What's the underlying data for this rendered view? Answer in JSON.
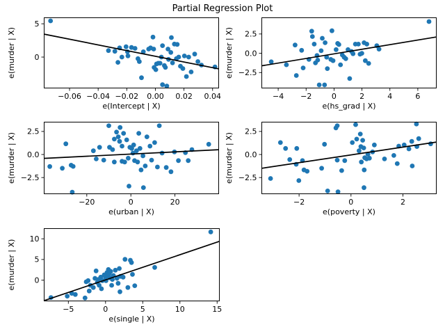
{
  "figure": {
    "title": "Partial Regression Plot",
    "background_color": "#ffffff",
    "marker_color": "#1f77b4",
    "line_color": "#000000",
    "spine_color": "#000000"
  },
  "chart_data": [
    {
      "id": "intercept",
      "type": "scatter",
      "title": "",
      "xlabel": "e(Intercept | X)",
      "ylabel": "e(murder | X)",
      "xlim": [
        -0.078,
        0.0445
      ],
      "ylim": [
        -4.7,
        5.96
      ],
      "grid": false,
      "legend": null,
      "xticks": [
        -0.06,
        -0.04,
        -0.02,
        0.0,
        0.02,
        0.04
      ],
      "xtick_labels": [
        "−0.06",
        "−0.04",
        "−0.02",
        "0.00",
        "0.02",
        "0.04"
      ],
      "yticks": [
        0,
        5
      ],
      "ytick_labels": [
        "0",
        "5"
      ],
      "regression_line": [
        [
          -0.078,
          3.45
        ],
        [
          0.0445,
          -1.78
        ]
      ],
      "points": [
        [
          -0.0733,
          5.44
        ],
        [
          -0.0328,
          0.97
        ],
        [
          -0.0283,
          0.87
        ],
        [
          -0.025,
          1.38
        ],
        [
          -0.0262,
          -0.79
        ],
        [
          -0.0234,
          0.0
        ],
        [
          -0.0205,
          1.55
        ],
        [
          -0.0195,
          0.8
        ],
        [
          -0.0192,
          0.18
        ],
        [
          -0.0167,
          1.45
        ],
        [
          -0.0142,
          1.31
        ],
        [
          -0.0122,
          -0.24
        ],
        [
          -0.0112,
          -0.68
        ],
        [
          -0.0097,
          -3.1
        ],
        [
          -0.0084,
          0.8
        ],
        [
          -0.0047,
          1.21
        ],
        [
          -0.0034,
          1.38
        ],
        [
          -0.0017,
          3.0
        ],
        [
          -0.0012,
          1.21
        ],
        [
          -0.0009,
          -1.55
        ],
        [
          0.0003,
          -1.89
        ],
        [
          0.0008,
          -1.03
        ],
        [
          0.002,
          -0.93
        ],
        [
          0.0033,
          -0.93
        ],
        [
          0.0042,
          0.0
        ],
        [
          0.005,
          1.72
        ],
        [
          0.0063,
          -1.27
        ],
        [
          0.007,
          -1.55
        ],
        [
          0.005,
          -4.15
        ],
        [
          0.008,
          -4.35
        ],
        [
          0.0088,
          1.21
        ],
        [
          0.0092,
          -0.34
        ],
        [
          0.0108,
          0.69
        ],
        [
          0.0112,
          2.93
        ],
        [
          0.012,
          -0.86
        ],
        [
          0.0133,
          1.96
        ],
        [
          0.0147,
          -0.24
        ],
        [
          0.0153,
          1.9
        ],
        [
          0.0163,
          0.0
        ],
        [
          0.0175,
          -1.37
        ],
        [
          0.0192,
          -1.72
        ],
        [
          0.0203,
          0.17
        ],
        [
          0.0217,
          -2.92
        ],
        [
          0.0233,
          0.0
        ],
        [
          0.025,
          -2.23
        ],
        [
          0.0275,
          0.45
        ],
        [
          0.0297,
          -0.68
        ],
        [
          0.0322,
          -1.2
        ],
        [
          0.0417,
          -1.48
        ]
      ]
    },
    {
      "id": "hs_grad",
      "type": "scatter",
      "title": "",
      "xlabel": "e(hs_grad | X)",
      "ylabel": "e(murder | X)",
      "xlim": [
        -5.2,
        7.35
      ],
      "ylim": [
        -4.55,
        4.65
      ],
      "grid": false,
      "legend": null,
      "xticks": [
        -4,
        -2,
        0,
        2,
        4,
        6
      ],
      "xtick_labels": [
        "−4",
        "−2",
        "0",
        "2",
        "4",
        "6"
      ],
      "yticks": [
        -2.5,
        0.0,
        2.5
      ],
      "ytick_labels": [
        "−2.5",
        "0.0",
        "2.5"
      ],
      "regression_line": [
        [
          -5.2,
          -1.63
        ],
        [
          7.35,
          2.12
        ]
      ],
      "points": [
        [
          6.8,
          4.11
        ],
        [
          -4.5,
          -1.1
        ],
        [
          -3.41,
          -1.49
        ],
        [
          -2.79,
          1.07
        ],
        [
          -2.7,
          -2.88
        ],
        [
          -2.32,
          0.38
        ],
        [
          -2.21,
          -1.9
        ],
        [
          -1.8,
          -0.8
        ],
        [
          -1.6,
          2.86
        ],
        [
          -1.55,
          2.17
        ],
        [
          -1.42,
          1.19
        ],
        [
          -1.33,
          -1.25
        ],
        [
          -1.22,
          -0.29
        ],
        [
          -1.17,
          -0.89
        ],
        [
          -1.06,
          -4.1
        ],
        [
          -0.92,
          0.33
        ],
        [
          -0.84,
          1.94
        ],
        [
          -0.68,
          -4.1
        ],
        [
          -0.64,
          1.37
        ],
        [
          -0.53,
          -0.51
        ],
        [
          -0.48,
          -1.99
        ],
        [
          -0.23,
          -0.8
        ],
        [
          -0.15,
          2.92
        ],
        [
          -0.07,
          -0.96
        ],
        [
          0.15,
          0.47
        ],
        [
          0.26,
          1.28
        ],
        [
          0.35,
          1.13
        ],
        [
          0.46,
          -1.49
        ],
        [
          0.59,
          -0.21
        ],
        [
          0.72,
          -0.51
        ],
        [
          0.84,
          -0.71
        ],
        [
          1.0,
          0.47
        ],
        [
          1.12,
          -3.28
        ],
        [
          1.25,
          0.24
        ],
        [
          1.36,
          -0.06
        ],
        [
          1.53,
          1.19
        ],
        [
          1.74,
          1.19
        ],
        [
          1.86,
          -0.12
        ],
        [
          1.99,
          0.0
        ],
        [
          2.15,
          1.37
        ],
        [
          2.24,
          -0.96
        ],
        [
          2.35,
          1.19
        ],
        [
          2.48,
          -1.31
        ],
        [
          3.06,
          0.98
        ],
        [
          3.22,
          0.54
        ]
      ]
    },
    {
      "id": "urban",
      "type": "scatter",
      "title": "",
      "xlabel": "e(urban | X)",
      "ylabel": "e(murder | X)",
      "xlim": [
        -39.5,
        40.0
      ],
      "ylim": [
        -4.3,
        3.55
      ],
      "grid": false,
      "legend": null,
      "xticks": [
        -20,
        0,
        20
      ],
      "xtick_labels": [
        "−20",
        "0",
        "20"
      ],
      "yticks": [
        -2.5,
        0.0,
        2.5
      ],
      "ytick_labels": [
        "−2.5",
        "0.0",
        "2.5"
      ],
      "regression_line": [
        [
          -39.5,
          -0.42
        ],
        [
          40.0,
          0.52
        ]
      ],
      "points": [
        [
          -36.8,
          -1.3
        ],
        [
          -31.1,
          -1.49
        ],
        [
          -29.5,
          1.16
        ],
        [
          -27.1,
          -1.16
        ],
        [
          -26.6,
          -4.09
        ],
        [
          -26.2,
          -1.29
        ],
        [
          -17.0,
          0.4
        ],
        [
          -15.7,
          -0.48
        ],
        [
          -14.2,
          0.78
        ],
        [
          -12.3,
          -0.61
        ],
        [
          -10.0,
          3.13
        ],
        [
          -9.7,
          0.78
        ],
        [
          -8.3,
          0.53
        ],
        [
          -7.5,
          1.67
        ],
        [
          -7.5,
          -0.81
        ],
        [
          -6.5,
          2.43
        ],
        [
          -5.7,
          1.92
        ],
        [
          -5.1,
          1.42
        ],
        [
          -4.9,
          2.93
        ],
        [
          -4.0,
          0.91
        ],
        [
          -4.0,
          -0.74
        ],
        [
          -3.3,
          2.3
        ],
        [
          -2.8,
          -0.81
        ],
        [
          -1.9,
          1.59
        ],
        [
          -1.2,
          -0.4
        ],
        [
          -0.86,
          -3.43
        ],
        [
          -0.44,
          0.78
        ],
        [
          0.41,
          0.66
        ],
        [
          0.95,
          0.15
        ],
        [
          1.27,
          1.04
        ],
        [
          1.68,
          -0.66
        ],
        [
          2.54,
          0.4
        ],
        [
          3.05,
          -0.81
        ],
        [
          3.59,
          2.3
        ],
        [
          4.13,
          0.66
        ],
        [
          4.63,
          -1.67
        ],
        [
          5.49,
          -0.15
        ],
        [
          5.71,
          -3.59
        ],
        [
          6.54,
          -1.24
        ],
        [
          7.3,
          1.92
        ],
        [
          8.67,
          0.91
        ],
        [
          9.4,
          -0.61
        ],
        [
          10.79,
          1.29
        ],
        [
          12.06,
          -1.36
        ],
        [
          12.89,
          3.13
        ],
        [
          14.16,
          0.15
        ],
        [
          16.06,
          -1.41
        ],
        [
          18.19,
          -1.87
        ],
        [
          19.78,
          0.28
        ],
        [
          21.59,
          -0.66
        ],
        [
          24.76,
          0.2
        ],
        [
          26.03,
          -0.66
        ],
        [
          27.71,
          0.53
        ],
        [
          35.33,
          1.11
        ]
      ]
    },
    {
      "id": "poverty",
      "type": "scatter",
      "title": "",
      "xlabel": "e(poverty | X)",
      "ylabel": "e(murder | X)",
      "xlim": [
        -3.45,
        3.3
      ],
      "ylim": [
        -4.3,
        3.55
      ],
      "grid": false,
      "legend": null,
      "xticks": [
        -2,
        0,
        2
      ],
      "xtick_labels": [
        "−2",
        "0",
        "2"
      ],
      "yticks": [
        -2.5,
        0.0,
        2.5
      ],
      "ytick_labels": [
        "−2.5",
        "0.0",
        "2.5"
      ],
      "regression_line": [
        [
          -3.45,
          -1.5
        ],
        [
          3.3,
          1.35
        ]
      ],
      "points": [
        [
          -3.1,
          -2.6
        ],
        [
          -2.72,
          1.29
        ],
        [
          -2.52,
          0.66
        ],
        [
          -2.36,
          -0.55
        ],
        [
          -2.09,
          0.66
        ],
        [
          -2.11,
          -1.06
        ],
        [
          -2.01,
          -2.83
        ],
        [
          -1.87,
          -0.66
        ],
        [
          -1.81,
          -1.67
        ],
        [
          -1.69,
          -1.82
        ],
        [
          -1.13,
          -1.49
        ],
        [
          -1.02,
          1.11
        ],
        [
          -0.9,
          -3.95
        ],
        [
          -0.58,
          2.88
        ],
        [
          -0.53,
          -0.61
        ],
        [
          -0.5,
          -4.05
        ],
        [
          -0.36,
          -1.74
        ],
        [
          -0.24,
          -0.66
        ],
        [
          -0.53,
          3.13
        ],
        [
          0.18,
          3.24
        ],
        [
          0.05,
          1.29
        ],
        [
          0.22,
          1.67
        ],
        [
          0.31,
          0.4
        ],
        [
          0.36,
          2.22
        ],
        [
          0.38,
          0.86
        ],
        [
          0.4,
          -0.81
        ],
        [
          0.45,
          1.54
        ],
        [
          0.49,
          0.71
        ],
        [
          0.51,
          -1.67
        ],
        [
          0.53,
          -0.35
        ],
        [
          0.5,
          -3.6
        ],
        [
          0.6,
          -0.48
        ],
        [
          0.65,
          0.03
        ],
        [
          0.71,
          -0.4
        ],
        [
          0.83,
          0.28
        ],
        [
          0.9,
          1.04
        ],
        [
          1.29,
          -0.48
        ],
        [
          1.65,
          -0.1
        ],
        [
          1.78,
          -0.99
        ],
        [
          1.84,
          0.91
        ],
        [
          2.05,
          1.04
        ],
        [
          2.23,
          0.61
        ],
        [
          2.34,
          1.42
        ],
        [
          2.36,
          -1.24
        ],
        [
          2.52,
          3.31
        ],
        [
          2.54,
          0.86
        ],
        [
          2.61,
          1.72
        ],
        [
          3.07,
          1.16
        ]
      ]
    },
    {
      "id": "single",
      "type": "scatter",
      "title": "",
      "xlabel": "e(single | X)",
      "ylabel": "e(murder | X)",
      "xlim": [
        -8.3,
        15.35
      ],
      "ylim": [
        -5.1,
        12.55
      ],
      "grid": false,
      "legend": null,
      "xticks": [
        -5,
        0,
        5,
        10,
        15
      ],
      "xtick_labels": [
        "−5",
        "0",
        "5",
        "10",
        "15"
      ],
      "yticks": [
        0,
        5,
        10
      ],
      "ytick_labels": [
        "0",
        "5",
        "10"
      ],
      "regression_line": [
        [
          -8.3,
          -4.97
        ],
        [
          15.35,
          9.4
        ]
      ],
      "points": [
        [
          14.14,
          11.66
        ],
        [
          -7.34,
          -4.2
        ],
        [
          -5.15,
          -3.86
        ],
        [
          -4.54,
          -3.19
        ],
        [
          -4.07,
          -3.46
        ],
        [
          -2.76,
          -4.3
        ],
        [
          -2.6,
          -0.39
        ],
        [
          -2.35,
          -0.1
        ],
        [
          -2.2,
          -2.62
        ],
        [
          -2.04,
          -1.23
        ],
        [
          -1.64,
          -1.78
        ],
        [
          -1.42,
          0.45
        ],
        [
          -1.27,
          2.25
        ],
        [
          -1.11,
          -0.55
        ],
        [
          -0.95,
          0.17
        ],
        [
          -0.86,
          -1.23
        ],
        [
          -0.64,
          0.74
        ],
        [
          -0.55,
          -2.07
        ],
        [
          -0.43,
          -0.1
        ],
        [
          -0.18,
          1.29
        ],
        [
          -0.02,
          0.74
        ],
        [
          0.07,
          -0.1
        ],
        [
          0.2,
          1.85
        ],
        [
          0.29,
          1.01
        ],
        [
          0.38,
          2.59
        ],
        [
          0.5,
          1.58
        ],
        [
          0.6,
          0.57
        ],
        [
          0.69,
          2.13
        ],
        [
          0.82,
          -1.23
        ],
        [
          0.92,
          0.17
        ],
        [
          1.06,
          1.13
        ],
        [
          1.32,
          2.42
        ],
        [
          1.53,
          0.45
        ],
        [
          1.69,
          -0.77
        ],
        [
          1.85,
          2.81
        ],
        [
          2.0,
          0.91
        ],
        [
          1.94,
          -2.79
        ],
        [
          2.37,
          0.74
        ],
        [
          2.62,
          5.04
        ],
        [
          3.0,
          -1.78
        ],
        [
          3.34,
          4.82
        ],
        [
          3.49,
          4.27
        ],
        [
          3.62,
          1.41
        ],
        [
          3.93,
          -1.34
        ],
        [
          6.61,
          3.09
        ]
      ]
    }
  ]
}
